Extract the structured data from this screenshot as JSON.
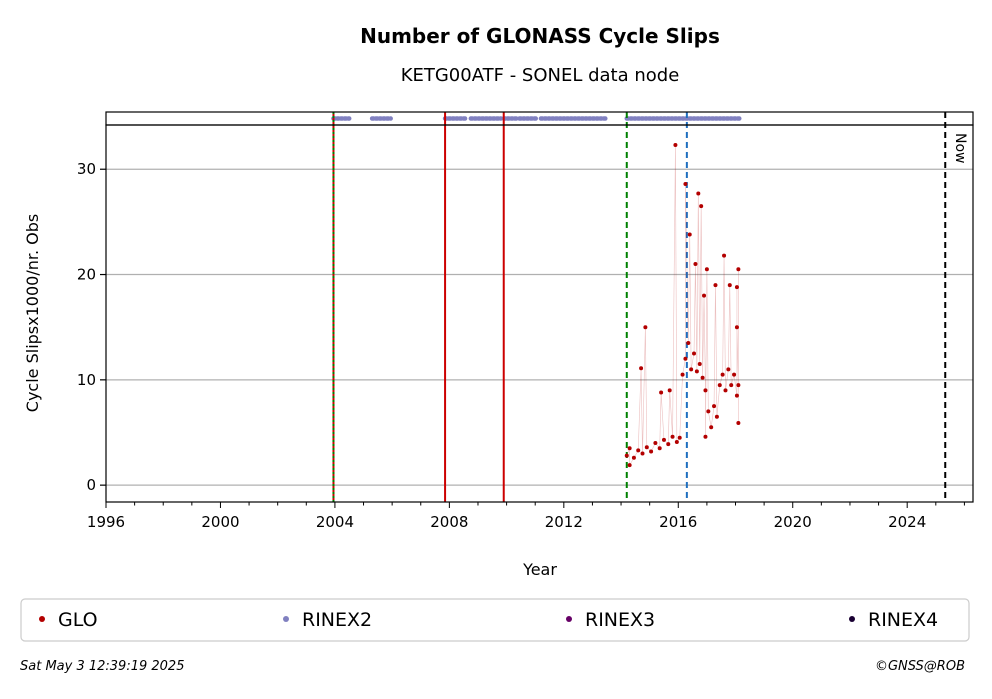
{
  "chart_data": {
    "type": "scatter",
    "title": "Number of GLONASS Cycle Slips",
    "subtitle": "KETG00ATF - SONEL data node",
    "xlabel": "Year",
    "ylabel": "Cycle Slipsx1000/nr. Obs",
    "xlim": [
      1996,
      2026.3
    ],
    "ylim": [
      -1.6,
      34.2
    ],
    "x_ticks": [
      1996,
      2000,
      2004,
      2008,
      2012,
      2016,
      2020,
      2024
    ],
    "y_ticks": [
      0,
      10,
      20,
      30
    ],
    "grid": "horizontal",
    "legend_position": "bottom",
    "legend": [
      {
        "label": "GLO",
        "color": "#b30000"
      },
      {
        "label": "RINEX2",
        "color": "#8080c0"
      },
      {
        "label": "RINEX3",
        "color": "#660066"
      },
      {
        "label": "RINEX4",
        "color": "#1a0033"
      }
    ],
    "vertical_lines": [
      {
        "x": 2003.95,
        "color": "#cc0000",
        "style": "solid"
      },
      {
        "x": 2003.95,
        "color": "#008000",
        "style": "dotted"
      },
      {
        "x": 2007.85,
        "color": "#cc0000",
        "style": "solid"
      },
      {
        "x": 2009.9,
        "color": "#cc0000",
        "style": "solid"
      },
      {
        "x": 2014.2,
        "color": "#008000",
        "style": "dashed"
      },
      {
        "x": 2016.3,
        "color": "#1f6fbf",
        "style": "dashed"
      },
      {
        "x": 2025.33,
        "color": "#000000",
        "style": "dashed",
        "label": "Now"
      }
    ],
    "rinex2_periods": [
      [
        2003.95,
        2004.5
      ],
      [
        2005.3,
        2005.95
      ],
      [
        2007.85,
        2008.6
      ],
      [
        2008.75,
        2009.8
      ],
      [
        2009.9,
        2010.35
      ],
      [
        2010.45,
        2011.05
      ],
      [
        2011.2,
        2013.45
      ],
      [
        2014.2,
        2018.15
      ]
    ],
    "series": [
      {
        "name": "GLO",
        "color": "#b30000",
        "points": [
          [
            2014.2,
            2.8
          ],
          [
            2014.3,
            3.5
          ],
          [
            2014.45,
            2.6
          ],
          [
            2014.6,
            3.3
          ],
          [
            2014.75,
            3.0
          ],
          [
            2014.9,
            3.6
          ],
          [
            2015.05,
            3.2
          ],
          [
            2015.2,
            4.0
          ],
          [
            2015.35,
            3.5
          ],
          [
            2015.5,
            4.3
          ],
          [
            2015.65,
            3.9
          ],
          [
            2015.8,
            4.6
          ],
          [
            2015.95,
            4.1
          ],
          [
            2016.05,
            4.5
          ],
          [
            2016.15,
            10.5
          ],
          [
            2016.25,
            12.0
          ],
          [
            2016.35,
            13.5
          ],
          [
            2016.45,
            11.0
          ],
          [
            2016.55,
            12.5
          ],
          [
            2016.65,
            10.8
          ],
          [
            2016.75,
            11.5
          ],
          [
            2016.85,
            10.2
          ],
          [
            2016.95,
            9.0
          ],
          [
            2017.05,
            7.0
          ],
          [
            2017.15,
            5.5
          ],
          [
            2017.25,
            7.5
          ],
          [
            2017.35,
            6.5
          ],
          [
            2017.45,
            9.5
          ],
          [
            2017.55,
            10.5
          ],
          [
            2017.65,
            9.0
          ],
          [
            2017.75,
            11.0
          ],
          [
            2017.85,
            9.5
          ],
          [
            2017.95,
            10.5
          ],
          [
            2018.05,
            8.5
          ],
          [
            2018.1,
            9.5
          ],
          [
            2014.7,
            11.1
          ],
          [
            2014.85,
            15.0
          ],
          [
            2015.4,
            8.8
          ],
          [
            2015.7,
            9.0
          ],
          [
            2015.9,
            32.3
          ],
          [
            2016.25,
            28.6
          ],
          [
            2016.4,
            23.8
          ],
          [
            2016.7,
            27.7
          ],
          [
            2016.8,
            26.5
          ],
          [
            2016.6,
            21.0
          ],
          [
            2016.9,
            18.0
          ],
          [
            2017.0,
            20.5
          ],
          [
            2017.3,
            19.0
          ],
          [
            2017.6,
            21.8
          ],
          [
            2017.8,
            19.0
          ],
          [
            2018.05,
            18.8
          ],
          [
            2018.1,
            20.5
          ],
          [
            2018.05,
            15.0
          ],
          [
            2014.3,
            1.9
          ],
          [
            2016.95,
            4.6
          ],
          [
            2018.1,
            5.9
          ]
        ]
      }
    ]
  },
  "footer": {
    "timestamp": "Sat May  3 12:39:19 2025",
    "credit": "©GNSS@ROB"
  }
}
